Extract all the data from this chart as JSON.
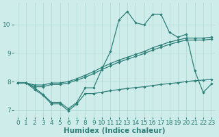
{
  "title": "",
  "xlabel": "Humidex (Indice chaleur)",
  "bg_color": "#ceecea",
  "line_color": "#2d7f78",
  "grid_color": "#b0d8d4",
  "x": [
    0,
    1,
    2,
    3,
    4,
    5,
    6,
    7,
    8,
    9,
    10,
    11,
    12,
    13,
    14,
    15,
    16,
    17,
    18,
    19,
    20,
    21,
    22,
    23
  ],
  "line_max": [
    7.95,
    7.95,
    7.78,
    7.55,
    7.27,
    7.27,
    7.05,
    7.27,
    7.78,
    7.78,
    8.45,
    9.05,
    10.15,
    10.45,
    10.05,
    9.98,
    10.35,
    10.35,
    9.72,
    9.55,
    9.65,
    8.38,
    7.62,
    7.92
  ],
  "line_mean1": [
    7.95,
    7.95,
    7.88,
    7.88,
    7.95,
    7.95,
    8.0,
    8.1,
    8.22,
    8.35,
    8.5,
    8.63,
    8.75,
    8.85,
    8.95,
    9.05,
    9.18,
    9.28,
    9.38,
    9.45,
    9.52,
    9.52,
    9.52,
    9.55
  ],
  "line_mean2": [
    7.95,
    7.95,
    7.82,
    7.82,
    7.9,
    7.9,
    7.95,
    8.05,
    8.15,
    8.28,
    8.42,
    8.55,
    8.68,
    8.78,
    8.88,
    8.98,
    9.1,
    9.2,
    9.3,
    9.38,
    9.45,
    9.45,
    9.45,
    9.48
  ],
  "line_min": [
    7.95,
    7.95,
    7.72,
    7.52,
    7.22,
    7.22,
    6.98,
    7.22,
    7.58,
    7.58,
    7.63,
    7.68,
    7.72,
    7.76,
    7.79,
    7.82,
    7.86,
    7.9,
    7.93,
    7.96,
    8.0,
    8.03,
    8.05,
    8.08
  ],
  "ylim": [
    6.75,
    10.75
  ],
  "yticks": [
    7,
    8,
    9,
    10
  ],
  "tick_fontsize": 6.5,
  "label_fontsize": 7.5
}
